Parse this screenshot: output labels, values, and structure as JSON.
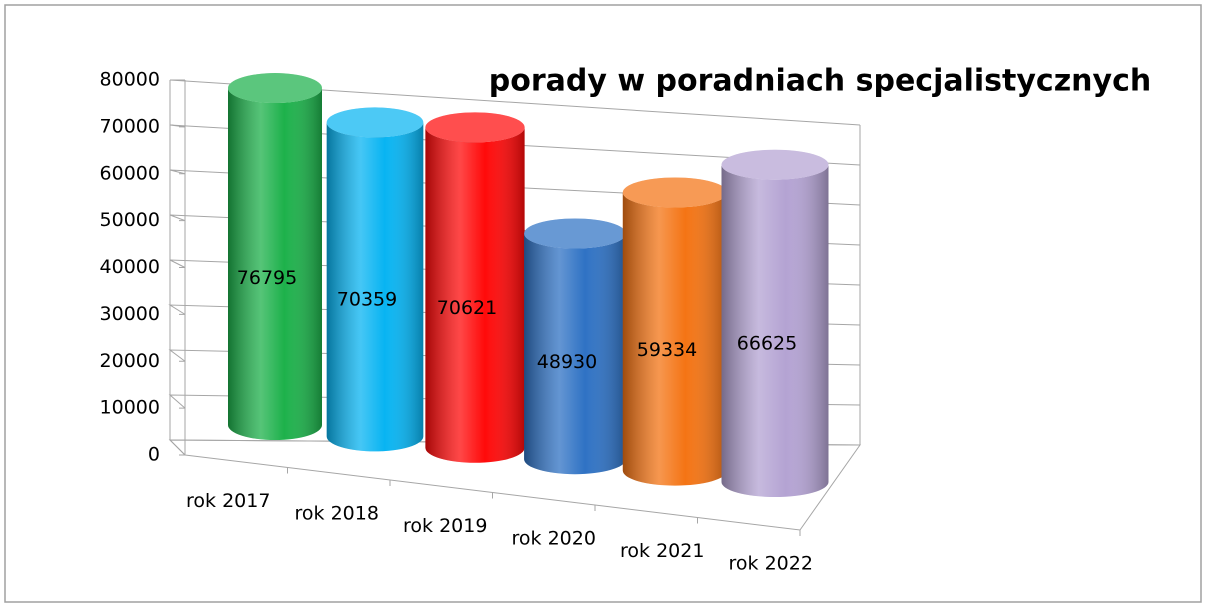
{
  "chart_data": {
    "type": "bar",
    "title": "porady w poradniach specjalistycznych",
    "categories": [
      "rok 2017",
      "rok 2018",
      "rok 2019",
      "rok 2020",
      "rok 2021",
      "rok 2022"
    ],
    "values": [
      76795,
      70359,
      70621,
      48930,
      59334,
      66625
    ],
    "colors": [
      "#1db14b",
      "#08b4f2",
      "#ff0a0a",
      "#2f72c4",
      "#f47414",
      "#b4a3d3"
    ],
    "ylim": [
      0,
      80000
    ],
    "yticks": [
      0,
      10000,
      20000,
      30000,
      40000,
      50000,
      60000,
      70000,
      80000
    ],
    "grid": true
  }
}
